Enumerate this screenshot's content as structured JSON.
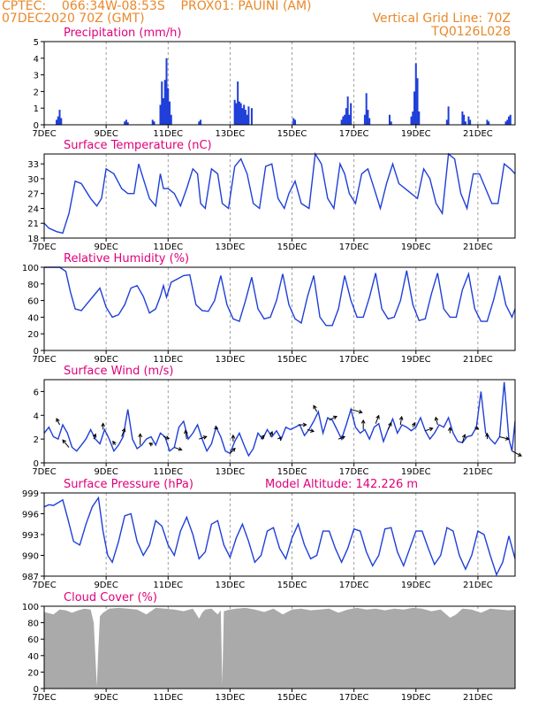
{
  "header": {
    "line1": "CPTEC:    066:34W-08:53S    PROX01: PAUINI (AM)",
    "line2": "07DEC2020 70Z (GMT)",
    "grid_note": "Vertical Grid Line: 70Z",
    "code": "TQ0126L028"
  },
  "colors": {
    "header": "#e8892b",
    "title": "#e0007a",
    "series": "#1f3fd8",
    "cloud": "#aaaaaa",
    "arrow": "#000000",
    "grid": "#888888"
  },
  "x_tick_labels": [
    "7DEC",
    "9DEC",
    "11DEC",
    "13DEC",
    "15DEC",
    "17DEC",
    "19DEC",
    "21DEC"
  ],
  "x_tick_days": [
    0,
    2,
    4,
    6,
    8,
    10,
    12,
    14
  ],
  "x_range_days": [
    0,
    15.2
  ],
  "chart_data": [
    {
      "type": "bar",
      "title": "Precipitation (mm/h)",
      "ylim": [
        0,
        5
      ],
      "yticks": [
        0,
        1,
        2,
        3,
        4,
        5
      ],
      "bars_x_days": [
        0.4,
        0.45,
        0.5,
        0.55,
        2.6,
        2.65,
        2.7,
        3.5,
        3.55,
        3.75,
        3.8,
        3.85,
        3.9,
        3.95,
        4.0,
        4.05,
        4.1,
        5.0,
        5.05,
        6.15,
        6.2,
        6.25,
        6.3,
        6.35,
        6.4,
        6.45,
        6.5,
        6.55,
        6.6,
        6.7,
        8.05,
        8.1,
        9.6,
        9.65,
        9.7,
        9.75,
        9.8,
        9.85,
        9.9,
        10.35,
        10.4,
        10.45,
        10.5,
        11.15,
        11.2,
        11.85,
        11.9,
        11.95,
        12.0,
        12.05,
        12.1,
        13.0,
        13.05,
        13.5,
        13.55,
        13.6,
        13.7,
        13.75,
        14.3,
        14.35,
        14.9,
        14.95,
        15.0,
        15.05
      ],
      "bars_values": [
        0.3,
        0.5,
        0.9,
        0.4,
        0.2,
        0.3,
        0.15,
        0.3,
        0.2,
        1.2,
        2.6,
        1.6,
        2.7,
        4.0,
        2.2,
        1.4,
        0.6,
        0.2,
        0.3,
        1.5,
        1.3,
        2.6,
        1.4,
        1.3,
        1.0,
        1.2,
        0.9,
        0.6,
        1.1,
        1.0,
        0.4,
        0.3,
        0.3,
        0.5,
        0.6,
        1.0,
        1.7,
        0.6,
        1.3,
        0.6,
        1.9,
        0.9,
        0.4,
        0.6,
        0.2,
        0.5,
        0.8,
        2.0,
        3.7,
        2.8,
        0.8,
        0.3,
        1.1,
        0.8,
        0.6,
        0.2,
        0.5,
        0.3,
        0.3,
        0.2,
        0.2,
        0.3,
        0.5,
        0.6
      ]
    },
    {
      "type": "line",
      "title": "Surface Temperature (nC)",
      "ylim": [
        18,
        35
      ],
      "yticks": [
        18,
        21,
        24,
        27,
        30,
        33
      ],
      "x_days": [
        0,
        0.15,
        0.4,
        0.6,
        0.8,
        1.0,
        1.2,
        1.5,
        1.7,
        1.85,
        2.0,
        2.25,
        2.5,
        2.7,
        2.9,
        3.05,
        3.2,
        3.4,
        3.6,
        3.75,
        3.85,
        4.0,
        4.2,
        4.4,
        4.6,
        4.8,
        4.95,
        5.05,
        5.2,
        5.4,
        5.6,
        5.75,
        5.95,
        6.15,
        6.35,
        6.55,
        6.75,
        6.95,
        7.15,
        7.35,
        7.55,
        7.75,
        7.9,
        8.1,
        8.3,
        8.55,
        8.75,
        8.95,
        9.15,
        9.35,
        9.55,
        9.7,
        9.85,
        10.05,
        10.25,
        10.45,
        10.65,
        10.85,
        11.05,
        11.25,
        11.45,
        11.65,
        11.85,
        12.05,
        12.25,
        12.45,
        12.65,
        12.85,
        13.05,
        13.25,
        13.45,
        13.65,
        13.85,
        14.05,
        14.25,
        14.45,
        14.65,
        14.85,
        15.05,
        15.2
      ],
      "values": [
        21,
        20,
        19.3,
        19,
        23,
        29.5,
        29,
        26,
        24.5,
        26,
        32,
        31,
        28,
        27,
        27,
        33,
        30,
        26,
        24.5,
        31,
        28,
        28,
        27,
        24.5,
        28,
        32,
        31,
        25,
        24,
        32,
        31,
        25,
        24,
        32.5,
        34,
        31,
        25,
        24,
        32.5,
        33,
        26,
        24,
        27,
        29.5,
        25,
        24,
        35,
        33,
        26,
        24,
        33,
        31,
        27,
        25,
        31,
        32,
        28,
        24,
        29,
        33,
        29,
        28,
        27,
        26,
        32,
        30,
        25,
        23,
        35,
        34,
        27,
        24,
        31,
        31,
        28,
        25,
        25,
        33,
        32,
        31
      ],
      "color": "#1f3fd8"
    },
    {
      "type": "line",
      "title": "Relative Humidity (%)",
      "ylim": [
        0,
        100
      ],
      "yticks": [
        0,
        20,
        40,
        60,
        80,
        100
      ],
      "x_days": [
        0,
        0.3,
        0.5,
        0.7,
        0.85,
        1.0,
        1.2,
        1.4,
        1.6,
        1.8,
        2.0,
        2.2,
        2.4,
        2.6,
        2.8,
        3.0,
        3.2,
        3.4,
        3.6,
        3.75,
        3.85,
        3.95,
        4.1,
        4.3,
        4.5,
        4.7,
        4.9,
        5.1,
        5.3,
        5.5,
        5.7,
        5.9,
        6.1,
        6.3,
        6.5,
        6.7,
        6.9,
        7.1,
        7.3,
        7.5,
        7.7,
        7.9,
        8.1,
        8.3,
        8.5,
        8.7,
        8.9,
        9.1,
        9.3,
        9.5,
        9.7,
        9.9,
        10.1,
        10.3,
        10.5,
        10.7,
        10.9,
        11.1,
        11.3,
        11.5,
        11.7,
        11.9,
        12.1,
        12.3,
        12.5,
        12.7,
        12.9,
        13.1,
        13.3,
        13.5,
        13.7,
        13.9,
        14.1,
        14.3,
        14.5,
        14.7,
        14.9,
        15.1,
        15.2
      ],
      "values": [
        100,
        100,
        100,
        95,
        70,
        50,
        48,
        57,
        66,
        75,
        52,
        40,
        43,
        55,
        75,
        78,
        65,
        45,
        50,
        65,
        78,
        64,
        82,
        86,
        90,
        91,
        55,
        48,
        47,
        60,
        90,
        55,
        38,
        35,
        60,
        88,
        50,
        38,
        40,
        60,
        92,
        55,
        38,
        33,
        65,
        90,
        40,
        30,
        30,
        50,
        90,
        60,
        40,
        40,
        64,
        93,
        50,
        38,
        40,
        60,
        96,
        55,
        36,
        38,
        68,
        93,
        50,
        40,
        40,
        73,
        92,
        50,
        35,
        35,
        60,
        90,
        55,
        40,
        50
      ],
      "color": "#1f3fd8"
    },
    {
      "type": "line",
      "title": "Surface Wind (m/s)",
      "ylim": [
        0,
        7
      ],
      "yticks": [
        0,
        2,
        4,
        6
      ],
      "x_days": [
        0,
        0.15,
        0.3,
        0.45,
        0.6,
        0.75,
        0.9,
        1.05,
        1.2,
        1.35,
        1.5,
        1.65,
        1.8,
        1.95,
        2.1,
        2.25,
        2.4,
        2.55,
        2.7,
        2.85,
        3.0,
        3.15,
        3.3,
        3.45,
        3.6,
        3.75,
        3.9,
        4.05,
        4.2,
        4.35,
        4.5,
        4.65,
        4.8,
        4.95,
        5.1,
        5.25,
        5.4,
        5.55,
        5.7,
        5.85,
        6.0,
        6.15,
        6.3,
        6.45,
        6.6,
        6.75,
        6.9,
        7.05,
        7.2,
        7.35,
        7.5,
        7.65,
        7.8,
        7.95,
        8.1,
        8.25,
        8.4,
        8.55,
        8.7,
        8.85,
        9.0,
        9.15,
        9.3,
        9.45,
        9.6,
        9.75,
        9.9,
        10.05,
        10.2,
        10.35,
        10.5,
        10.65,
        10.8,
        10.95,
        11.1,
        11.25,
        11.4,
        11.55,
        11.7,
        11.85,
        12.0,
        12.15,
        12.3,
        12.45,
        12.6,
        12.75,
        12.9,
        13.05,
        13.2,
        13.35,
        13.5,
        13.65,
        13.8,
        13.95,
        14.1,
        14.25,
        14.4,
        14.55,
        14.7,
        14.85,
        15.0,
        15.1,
        15.2
      ],
      "values": [
        2.5,
        3.0,
        2.2,
        2.0,
        3.2,
        2.5,
        1.3,
        1.0,
        1.5,
        2.0,
        2.8,
        2.0,
        1.6,
        2.8,
        2.0,
        1.0,
        1.5,
        2.2,
        4.5,
        2.0,
        1.2,
        1.5,
        2.0,
        2.2,
        1.5,
        2.5,
        2.2,
        1.0,
        1.3,
        3.0,
        3.5,
        2.0,
        2.5,
        3.2,
        2.0,
        1.0,
        1.6,
        3.0,
        2.2,
        1.0,
        0.8,
        1.8,
        2.5,
        1.5,
        0.6,
        1.2,
        2.5,
        2.0,
        2.8,
        2.2,
        2.7,
        2.0,
        3.0,
        2.8,
        3.0,
        3.2,
        2.3,
        2.8,
        3.5,
        4.3,
        2.5,
        3.8,
        3.6,
        2.8,
        2.0,
        3.2,
        4.5,
        3.0,
        2.5,
        2.8,
        2.0,
        3.0,
        3.3,
        1.8,
        2.8,
        3.7,
        2.5,
        3.2,
        3.0,
        2.7,
        3.0,
        3.8,
        2.7,
        2.0,
        2.5,
        3.2,
        3.0,
        3.8,
        2.5,
        1.8,
        1.7,
        2.2,
        2.3,
        3.0,
        6.0,
        2.5,
        2.0,
        1.6,
        2.2,
        6.8,
        2.0,
        1.0,
        3.5
      ],
      "arrows_x_days": [
        0.5,
        0.8,
        1.6,
        1.9,
        2.3,
        2.5,
        3.1,
        3.5,
        3.85,
        4.2,
        4.6,
        5.0,
        5.5,
        6.0,
        6.1,
        7.0,
        7.3,
        7.6,
        8.2,
        8.5,
        8.8,
        9.2,
        9.5,
        9.9,
        10.3,
        10.7,
        11.1,
        11.5,
        11.9,
        12.3,
        12.7,
        13.1,
        13.5,
        13.9,
        14.3,
        14.7,
        15.1
      ],
      "arrows_u": [
        -0.5,
        -1.0,
        0.3,
        0.0,
        -0.4,
        0.5,
        0.0,
        -0.5,
        0.9,
        1.2,
        -0.2,
        1.2,
        0.5,
        0.8,
        0.0,
        0.5,
        0.3,
        0.2,
        1.3,
        1.0,
        -0.5,
        1.2,
        1.0,
        1.8,
        0.0,
        0.5,
        0.5,
        0.2,
        0.3,
        1.2,
        -0.3,
        0.0,
        0.4,
        0.6,
        0.0,
        1.5,
        1.5
      ],
      "arrows_v": [
        1.0,
        1.2,
        0.8,
        1.0,
        0.6,
        1.3,
        1.8,
        0.3,
        -0.3,
        -0.4,
        1.4,
        0.4,
        -0.2,
        0.8,
        1.0,
        0.6,
        0.8,
        0.3,
        0.0,
        -0.3,
        1.0,
        0.6,
        0.4,
        -0.5,
        1.5,
        1.3,
        1.1,
        1.3,
        0.7,
        0.4,
        1.2,
        0.9,
        1.3,
        -0.3,
        0.9,
        -0.4,
        -0.8
      ],
      "color": "#1f3fd8"
    },
    {
      "type": "line",
      "title": "Surface Pressure (hPa)",
      "subtitle": "Model Altitude: 142.226  m",
      "ylim": [
        987,
        999
      ],
      "yticks": [
        987,
        990,
        993,
        996,
        999
      ],
      "x_days": [
        0,
        0.15,
        0.3,
        0.45,
        0.6,
        0.75,
        0.95,
        1.15,
        1.35,
        1.55,
        1.75,
        1.9,
        2.05,
        2.2,
        2.4,
        2.6,
        2.8,
        3.0,
        3.2,
        3.4,
        3.6,
        3.8,
        4.0,
        4.2,
        4.4,
        4.6,
        4.8,
        5.0,
        5.2,
        5.4,
        5.6,
        5.8,
        6.0,
        6.2,
        6.4,
        6.6,
        6.8,
        7.0,
        7.2,
        7.4,
        7.6,
        7.8,
        8.0,
        8.2,
        8.4,
        8.6,
        8.8,
        9.0,
        9.2,
        9.4,
        9.6,
        9.8,
        10.0,
        10.2,
        10.4,
        10.6,
        10.8,
        11.0,
        11.2,
        11.4,
        11.6,
        11.8,
        12.0,
        12.2,
        12.4,
        12.6,
        12.8,
        13.0,
        13.2,
        13.4,
        13.6,
        13.8,
        14.0,
        14.2,
        14.4,
        14.6,
        14.8,
        15.0,
        15.2
      ],
      "values": [
        997,
        997.3,
        997.2,
        997.6,
        998,
        995.5,
        992,
        991.5,
        994.5,
        997,
        998.3,
        993.5,
        990,
        989,
        992,
        995.7,
        996,
        992,
        990,
        991.5,
        995,
        994.2,
        991.5,
        990,
        993.5,
        995.5,
        993,
        989.5,
        990.5,
        994.5,
        995,
        991.5,
        989.7,
        992.5,
        994.5,
        992,
        989,
        990,
        993.5,
        994,
        991,
        989.5,
        992.5,
        994.5,
        991.5,
        989.5,
        990,
        993.5,
        993.5,
        991,
        989,
        991,
        993.8,
        993.5,
        990.5,
        988.5,
        990,
        993.8,
        994,
        990.5,
        988.5,
        991,
        993.5,
        993.5,
        991,
        988.7,
        990,
        994,
        993.5,
        990,
        988,
        990,
        993.5,
        993,
        990,
        987.2,
        989,
        992.8,
        989.5
      ],
      "color": "#1f3fd8"
    },
    {
      "type": "area",
      "title": "Cloud Cover (%)",
      "ylim": [
        0,
        100
      ],
      "yticks": [
        0,
        20,
        40,
        60,
        80,
        100
      ],
      "x_days": [
        0,
        0.3,
        0.5,
        0.7,
        0.9,
        1.1,
        1.3,
        1.5,
        1.6,
        1.65,
        1.7,
        1.75,
        1.8,
        1.9,
        2.1,
        2.4,
        2.7,
        3.0,
        3.3,
        3.6,
        3.9,
        4.2,
        4.5,
        4.8,
        5.0,
        5.1,
        5.2,
        5.4,
        5.6,
        5.7,
        5.75,
        5.8,
        6.0,
        6.2,
        6.5,
        6.8,
        7.1,
        7.4,
        7.7,
        8.0,
        8.3,
        8.6,
        8.9,
        9.2,
        9.5,
        9.8,
        10.1,
        10.4,
        10.7,
        11.0,
        11.3,
        11.6,
        11.9,
        12.2,
        12.5,
        12.8,
        13.1,
        13.3,
        13.5,
        13.8,
        14.1,
        14.4,
        14.7,
        15.0,
        15.2
      ],
      "values": [
        93,
        90,
        96,
        95,
        92,
        95,
        97,
        96,
        80,
        40,
        3,
        50,
        88,
        92,
        97,
        98,
        97,
        96,
        90,
        98,
        97,
        96,
        94,
        97,
        85,
        92,
        96,
        97,
        90,
        95,
        5,
        94,
        96,
        97,
        98,
        96,
        93,
        97,
        90,
        96,
        97,
        95,
        96,
        97,
        92,
        96,
        98,
        96,
        97,
        95,
        97,
        96,
        98,
        97,
        94,
        96,
        86,
        90,
        97,
        96,
        92,
        97,
        96,
        95,
        96
      ],
      "color": "#aaaaaa"
    }
  ]
}
